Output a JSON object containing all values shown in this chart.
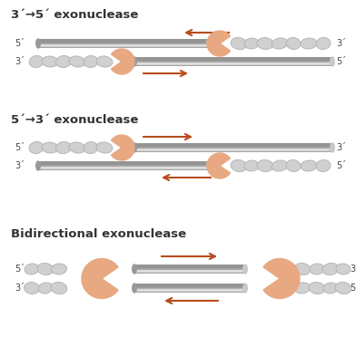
{
  "title1": "3´→5´ exonuclease",
  "title2": "5´→3´ exonuclease",
  "title3": "Bidirectional exonuclease",
  "bg_color": "#ffffff",
  "pacman_color": "#e8a882",
  "nucleotide_color": "#d0d0d0",
  "nucleotide_outline": "#b0b0b0",
  "arrow_color": "#b84c1e",
  "label_color": "#444444",
  "title_color": "#333333",
  "rod_top_color": "#d8d8d8",
  "rod_mid_color": "#b8b8b8",
  "rod_bot_color": "#a0a0a0"
}
